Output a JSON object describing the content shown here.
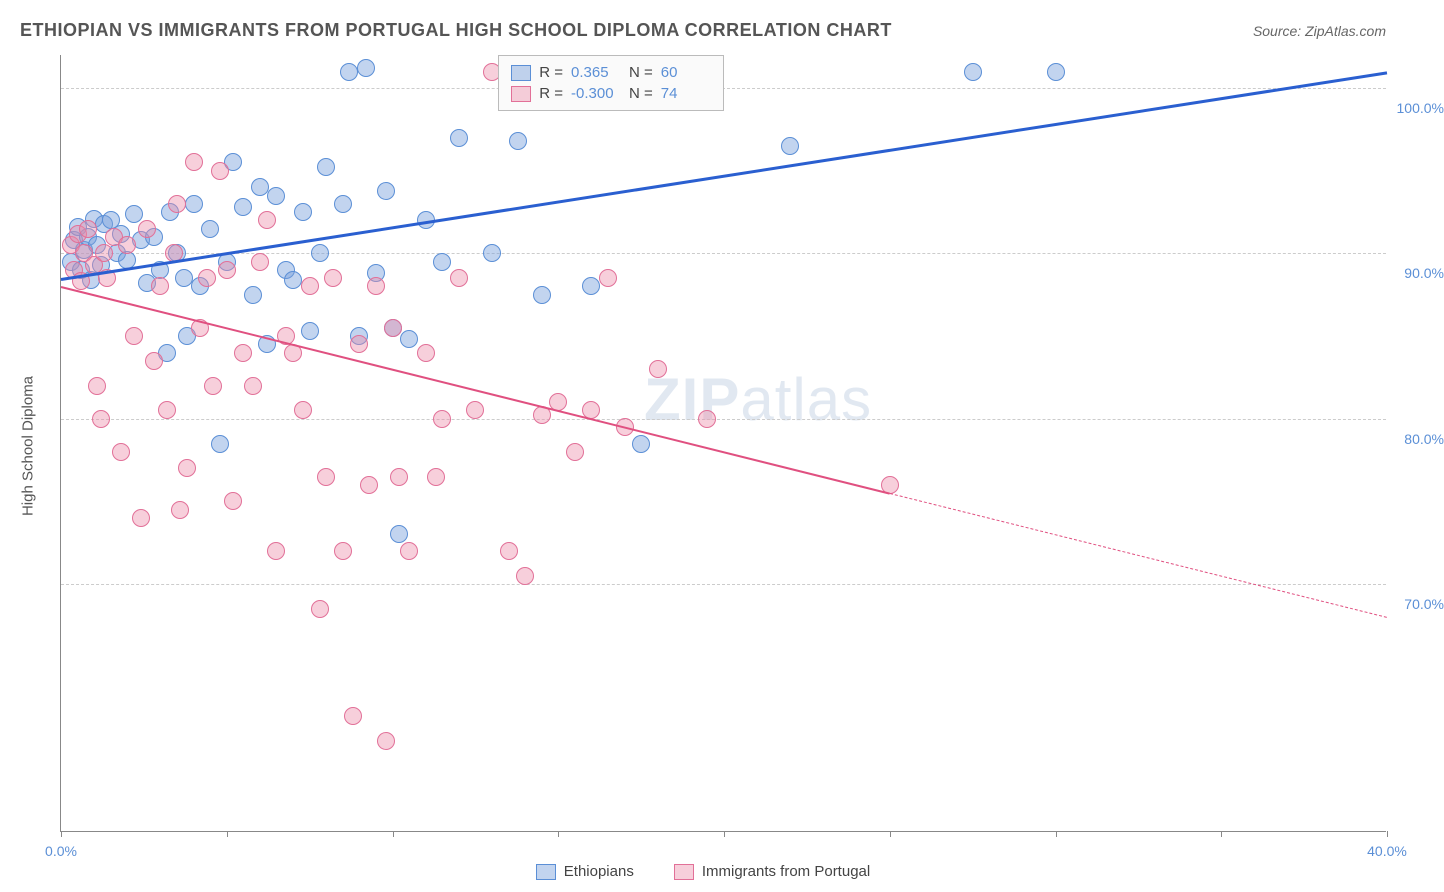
{
  "title": "ETHIOPIAN VS IMMIGRANTS FROM PORTUGAL HIGH SCHOOL DIPLOMA CORRELATION CHART",
  "source": "Source: ZipAtlas.com",
  "ylabel": "High School Diploma",
  "watermark_a": "ZIP",
  "watermark_b": "atlas",
  "chart": {
    "type": "scatter",
    "xlim": [
      0,
      40
    ],
    "ylim": [
      55,
      102
    ],
    "yticks": [
      70,
      80,
      90,
      100
    ],
    "ytick_labels": [
      "70.0%",
      "80.0%",
      "90.0%",
      "100.0%"
    ],
    "xticks": [
      0,
      5,
      10,
      15,
      20,
      25,
      30,
      35,
      40
    ],
    "xtick_labels_shown": {
      "0": "0.0%",
      "40": "40.0%"
    },
    "marker_size": 18,
    "background_color": "#ffffff",
    "grid_color": "#cccccc",
    "grid_dash": true
  },
  "series": [
    {
      "name": "Ethiopians",
      "color_fill": "rgba(120,160,220,0.45)",
      "color_stroke": "#5b8fd6",
      "trend_color": "#2a5fd0",
      "trend_width": 3,
      "r": "0.365",
      "n": "60",
      "trend": {
        "x1": 0,
        "y1": 88.5,
        "x2": 40,
        "y2": 101,
        "dash_after_x": 40
      },
      "points": [
        [
          0.3,
          89.5
        ],
        [
          0.4,
          90.8
        ],
        [
          0.5,
          91.6
        ],
        [
          0.6,
          89.0
        ],
        [
          0.7,
          90.2
        ],
        [
          0.8,
          91.0
        ],
        [
          0.9,
          88.4
        ],
        [
          1.0,
          92.1
        ],
        [
          1.1,
          90.5
        ],
        [
          1.2,
          89.3
        ],
        [
          1.3,
          91.8
        ],
        [
          1.5,
          92.0
        ],
        [
          1.7,
          90.0
        ],
        [
          1.8,
          91.2
        ],
        [
          2.0,
          89.6
        ],
        [
          2.2,
          92.4
        ],
        [
          2.4,
          90.8
        ],
        [
          2.6,
          88.2
        ],
        [
          2.8,
          91.0
        ],
        [
          3.0,
          89.0
        ],
        [
          3.2,
          84.0
        ],
        [
          3.3,
          92.5
        ],
        [
          3.5,
          90.0
        ],
        [
          3.7,
          88.5
        ],
        [
          3.8,
          85.0
        ],
        [
          4.0,
          93.0
        ],
        [
          4.2,
          88.0
        ],
        [
          4.5,
          91.5
        ],
        [
          4.8,
          78.5
        ],
        [
          5.0,
          89.5
        ],
        [
          5.2,
          95.5
        ],
        [
          5.5,
          92.8
        ],
        [
          5.8,
          87.5
        ],
        [
          6.0,
          94.0
        ],
        [
          6.2,
          84.5
        ],
        [
          6.5,
          93.5
        ],
        [
          6.8,
          89.0
        ],
        [
          7.0,
          88.4
        ],
        [
          7.3,
          92.5
        ],
        [
          7.5,
          85.3
        ],
        [
          7.8,
          90.0
        ],
        [
          8.0,
          95.2
        ],
        [
          8.5,
          93.0
        ],
        [
          8.7,
          101.0
        ],
        [
          9.0,
          85.0
        ],
        [
          9.2,
          101.2
        ],
        [
          9.5,
          88.8
        ],
        [
          9.8,
          93.8
        ],
        [
          10.0,
          85.5
        ],
        [
          10.2,
          73.0
        ],
        [
          10.5,
          84.8
        ],
        [
          11.0,
          92.0
        ],
        [
          11.5,
          89.5
        ],
        [
          12.0,
          97.0
        ],
        [
          13.0,
          90.0
        ],
        [
          13.8,
          96.8
        ],
        [
          14.5,
          87.5
        ],
        [
          16.0,
          88.0
        ],
        [
          17.5,
          78.5
        ],
        [
          22.0,
          96.5
        ],
        [
          27.5,
          101.0
        ],
        [
          30.0,
          101.0
        ]
      ]
    },
    {
      "name": "Immigrants from Portugal",
      "color_fill": "rgba(235,140,170,0.42)",
      "color_stroke": "#e27098",
      "trend_color": "#e05080",
      "trend_width": 2.5,
      "r": "-0.300",
      "n": "74",
      "trend": {
        "x1": 0,
        "y1": 88,
        "x2": 40,
        "y2": 68,
        "dash_after_x": 25
      },
      "points": [
        [
          0.3,
          90.5
        ],
        [
          0.4,
          89.0
        ],
        [
          0.5,
          91.2
        ],
        [
          0.6,
          88.3
        ],
        [
          0.7,
          90.0
        ],
        [
          0.8,
          91.5
        ],
        [
          1.0,
          89.3
        ],
        [
          1.1,
          82.0
        ],
        [
          1.2,
          80.0
        ],
        [
          1.3,
          90.0
        ],
        [
          1.4,
          88.5
        ],
        [
          1.6,
          91.0
        ],
        [
          1.8,
          78.0
        ],
        [
          2.0,
          90.5
        ],
        [
          2.2,
          85.0
        ],
        [
          2.4,
          74.0
        ],
        [
          2.6,
          91.5
        ],
        [
          2.8,
          83.5
        ],
        [
          3.0,
          88.0
        ],
        [
          3.2,
          80.5
        ],
        [
          3.4,
          90.0
        ],
        [
          3.5,
          93.0
        ],
        [
          3.6,
          74.5
        ],
        [
          3.8,
          77.0
        ],
        [
          4.0,
          95.5
        ],
        [
          4.2,
          85.5
        ],
        [
          4.4,
          88.5
        ],
        [
          4.6,
          82.0
        ],
        [
          4.8,
          95.0
        ],
        [
          5.0,
          89.0
        ],
        [
          5.2,
          75.0
        ],
        [
          5.5,
          84.0
        ],
        [
          5.8,
          82.0
        ],
        [
          6.0,
          89.5
        ],
        [
          6.2,
          92.0
        ],
        [
          6.5,
          72.0
        ],
        [
          6.8,
          85.0
        ],
        [
          7.0,
          84.0
        ],
        [
          7.3,
          80.5
        ],
        [
          7.5,
          88.0
        ],
        [
          7.8,
          68.5
        ],
        [
          8.0,
          76.5
        ],
        [
          8.2,
          88.5
        ],
        [
          8.5,
          72.0
        ],
        [
          8.8,
          62.0
        ],
        [
          9.0,
          84.5
        ],
        [
          9.3,
          76.0
        ],
        [
          9.5,
          88.0
        ],
        [
          9.8,
          60.5
        ],
        [
          10.0,
          85.5
        ],
        [
          10.2,
          76.5
        ],
        [
          10.5,
          72.0
        ],
        [
          11.0,
          84.0
        ],
        [
          11.3,
          76.5
        ],
        [
          11.5,
          80.0
        ],
        [
          12.0,
          88.5
        ],
        [
          12.5,
          80.5
        ],
        [
          13.0,
          101.0
        ],
        [
          13.5,
          72.0
        ],
        [
          14.0,
          70.5
        ],
        [
          14.5,
          80.2
        ],
        [
          15.0,
          81.0
        ],
        [
          15.5,
          78.0
        ],
        [
          16.0,
          80.5
        ],
        [
          16.5,
          88.5
        ],
        [
          17.0,
          79.5
        ],
        [
          18.0,
          83.0
        ],
        [
          19.5,
          80.0
        ],
        [
          25.0,
          76.0
        ]
      ]
    }
  ],
  "legend_top": {
    "r_label": "R =",
    "n_label": "N ="
  },
  "legend_bottom_labels": [
    "Ethiopians",
    "Immigrants from Portugal"
  ]
}
